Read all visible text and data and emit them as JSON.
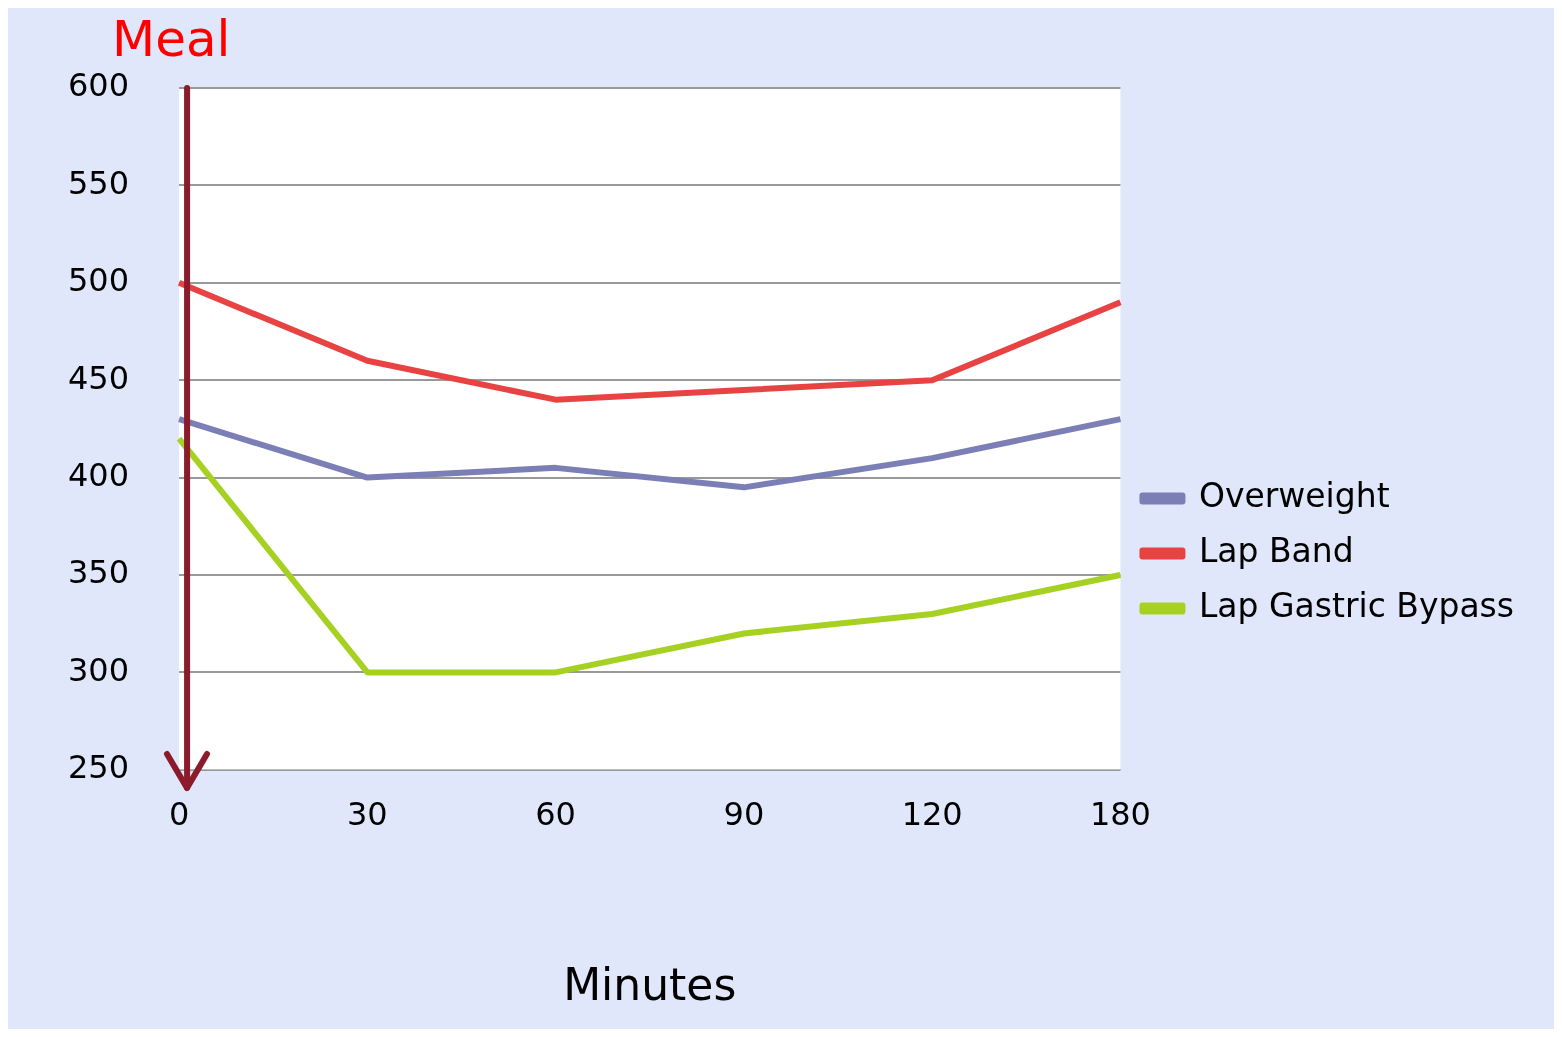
{
  "chart_data": {
    "type": "line",
    "xlabel": "Minutes",
    "categories": [
      "0",
      "30",
      "60",
      "90",
      "120",
      "180"
    ],
    "series": [
      {
        "name": "Overweight",
        "color": "#7b7fb5",
        "values": [
          430,
          400,
          405,
          395,
          410,
          430
        ]
      },
      {
        "name": "Lap Band",
        "color": "#e84343",
        "values": [
          500,
          460,
          440,
          445,
          450,
          490
        ]
      },
      {
        "name": "Lap Gastric Bypass",
        "color": "#a6d122",
        "values": [
          420,
          300,
          300,
          320,
          330,
          350
        ]
      }
    ],
    "ylim": [
      250,
      600
    ],
    "yticks": [
      250,
      300,
      350,
      400,
      450,
      500,
      550,
      600
    ],
    "grid": "y",
    "legend": "right",
    "marker": "none",
    "line_style": "solid",
    "ref_lines": [
      {
        "axis": "x",
        "value": "0",
        "label": "Meal",
        "color": "#8b1a2b"
      }
    ]
  }
}
